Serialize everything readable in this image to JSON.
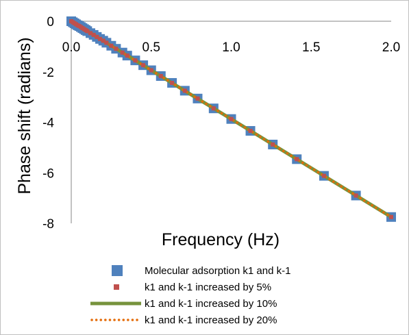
{
  "chart_data": {
    "type": "scatter",
    "xlabel": "Frequency (Hz)",
    "ylabel": "Phase shift (radians)",
    "xlim": [
      0,
      2.0
    ],
    "ylim": [
      -8,
      0
    ],
    "x_ticks": [
      "0.0",
      "0.5",
      "1.0",
      "1.5",
      "2.0"
    ],
    "y_ticks": [
      "0",
      "-2",
      "-4",
      "-6",
      "-8"
    ],
    "x_axis_position": "top",
    "grid": false,
    "legend_position": "bottom",
    "series": [
      {
        "name": "Molecular adsorption k1 and k-1",
        "marker": "large-square",
        "color": "#4f81bd",
        "x": [
          0.0,
          0.01,
          0.02,
          0.03,
          0.04,
          0.05,
          0.06,
          0.07,
          0.08,
          0.09,
          0.1,
          0.12,
          0.14,
          0.16,
          0.18,
          0.2,
          0.22,
          0.25,
          0.28,
          0.32,
          0.35,
          0.4,
          0.45,
          0.5,
          0.56,
          0.63,
          0.71,
          0.79,
          0.89,
          1.0,
          1.12,
          1.26,
          1.41,
          1.58,
          1.78,
          2.0
        ],
        "y": [
          0.0,
          -0.04,
          -0.08,
          -0.12,
          -0.16,
          -0.19,
          -0.23,
          -0.27,
          -0.31,
          -0.35,
          -0.39,
          -0.47,
          -0.54,
          -0.62,
          -0.7,
          -0.77,
          -0.85,
          -0.97,
          -1.09,
          -1.24,
          -1.36,
          -1.55,
          -1.74,
          -1.94,
          -2.17,
          -2.44,
          -2.75,
          -3.06,
          -3.45,
          -3.87,
          -4.34,
          -4.88,
          -5.46,
          -6.12,
          -6.9,
          -7.75
        ]
      },
      {
        "name": "k1 and k-1 increased by 5%",
        "marker": "small-square",
        "color": "#c0504d",
        "x": [
          0.0,
          0.01,
          0.02,
          0.03,
          0.04,
          0.05,
          0.06,
          0.07,
          0.08,
          0.09,
          0.1,
          0.12,
          0.14,
          0.16,
          0.18,
          0.2,
          0.22,
          0.25,
          0.28,
          0.32,
          0.35,
          0.4,
          0.45,
          0.5,
          0.56,
          0.63,
          0.71,
          0.79,
          0.89,
          1.0,
          1.12,
          1.26,
          1.41,
          1.58,
          1.78,
          2.0
        ],
        "y": [
          0.0,
          -0.04,
          -0.08,
          -0.12,
          -0.16,
          -0.19,
          -0.23,
          -0.27,
          -0.31,
          -0.35,
          -0.39,
          -0.47,
          -0.54,
          -0.62,
          -0.7,
          -0.77,
          -0.85,
          -0.97,
          -1.09,
          -1.24,
          -1.36,
          -1.55,
          -1.74,
          -1.94,
          -2.17,
          -2.44,
          -2.75,
          -3.06,
          -3.45,
          -3.87,
          -4.34,
          -4.88,
          -5.46,
          -6.12,
          -6.9,
          -7.75
        ]
      },
      {
        "name": "k1 and k-1 increased by 10%",
        "marker": "solid-line",
        "color": "#77933c",
        "x": [
          0.0,
          0.25,
          0.5,
          0.75,
          1.0,
          1.25,
          1.5,
          1.75,
          2.0
        ],
        "y": [
          0.0,
          -0.97,
          -1.94,
          -2.91,
          -3.87,
          -4.84,
          -5.81,
          -6.78,
          -7.75
        ]
      },
      {
        "name": "k1 and k-1 increased by 20%",
        "marker": "dotted-line",
        "color": "#e46c0a",
        "x": [
          0.0,
          0.25,
          0.5,
          0.75,
          1.0,
          1.25,
          1.5,
          1.75,
          2.0
        ],
        "y": [
          0.0,
          -0.97,
          -1.94,
          -2.91,
          -3.87,
          -4.84,
          -5.81,
          -6.78,
          -7.75
        ]
      }
    ]
  }
}
